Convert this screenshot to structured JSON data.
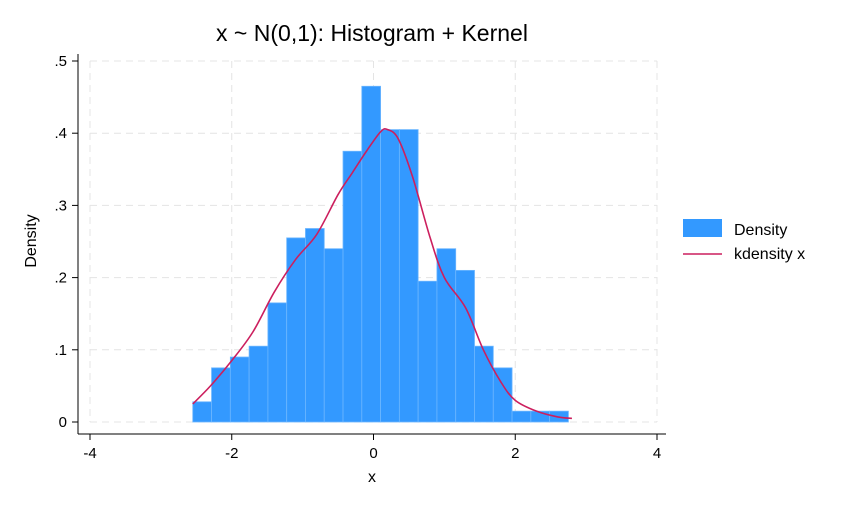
{
  "chart_data": {
    "type": "histogram",
    "title": "x ~ N(0,1): Histogram + Kernel",
    "xlabel": "x",
    "ylabel": "Density",
    "xlim": [
      -4,
      4
    ],
    "ylim": [
      0,
      0.5
    ],
    "xticks": [
      -4,
      -2,
      0,
      2,
      4
    ],
    "xtick_labels": [
      "-4",
      "-2",
      "0",
      "2",
      "4"
    ],
    "yticks": [
      0,
      0.1,
      0.2,
      0.3,
      0.4,
      0.5
    ],
    "ytick_labels": [
      "0",
      ".1",
      ".2",
      ".3",
      ".4",
      ".5"
    ],
    "grid": true,
    "legend_position": "right",
    "bin_edges": [
      -2.55,
      -2.285,
      -2.02,
      -1.755,
      -1.49,
      -1.225,
      -0.96,
      -0.695,
      -0.43,
      -0.165,
      0.1,
      0.365,
      0.63,
      0.895,
      1.16,
      1.425,
      1.69,
      1.955,
      2.22,
      2.485,
      2.75
    ],
    "series": [
      {
        "name": "Density",
        "kind": "bars",
        "color": "#3399ff",
        "values": [
          0.028,
          0.075,
          0.09,
          0.105,
          0.165,
          0.255,
          0.268,
          0.24,
          0.375,
          0.465,
          0.405,
          0.405,
          0.195,
          0.24,
          0.21,
          0.105,
          0.075,
          0.015,
          0.015,
          0.015
        ]
      },
      {
        "name": "kdensity x",
        "kind": "line",
        "color": "#cc1f5e",
        "x": [
          -2.55,
          -2.3,
          -2.0,
          -1.7,
          -1.4,
          -1.1,
          -0.8,
          -0.5,
          -0.3,
          -0.1,
          0.1,
          0.2,
          0.35,
          0.55,
          0.8,
          1.0,
          1.3,
          1.55,
          1.8,
          2.0,
          2.3,
          2.6,
          2.8
        ],
        "y": [
          0.025,
          0.05,
          0.085,
          0.125,
          0.18,
          0.225,
          0.26,
          0.315,
          0.345,
          0.375,
          0.402,
          0.405,
          0.392,
          0.34,
          0.255,
          0.2,
          0.158,
          0.1,
          0.055,
          0.03,
          0.015,
          0.007,
          0.005
        ]
      }
    ]
  }
}
